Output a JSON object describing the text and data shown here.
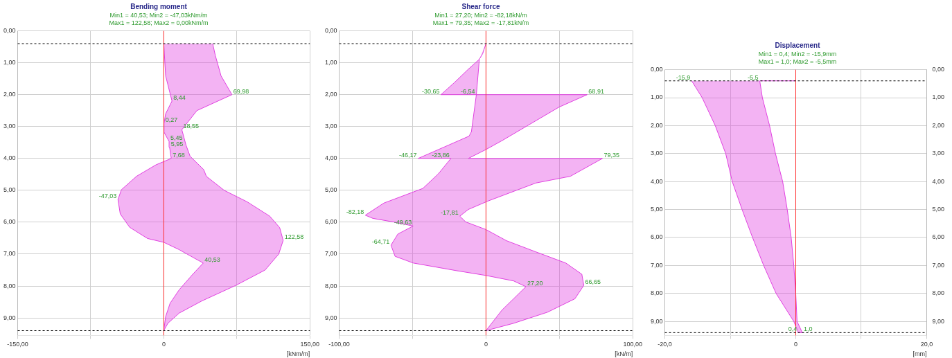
{
  "chart_data": [
    {
      "type": "area",
      "title": "Bending moment",
      "subtitle": "Min1 = 40,53; Min2 = -47,03kNm/m\nMax1 = 122,58; Max2 = 0,00kNm/m",
      "xlabel": "[kNm/m]",
      "xlim": [
        -150,
        150
      ],
      "xticks": [
        {
          "value": -150,
          "label": "-150,00"
        },
        {
          "value": -75,
          "label": null
        },
        {
          "value": 0,
          "label": "0"
        },
        {
          "value": 75,
          "label": null
        },
        {
          "value": 150,
          "label": "150,00"
        }
      ],
      "ylim": [
        9.55,
        0
      ],
      "yticks": [
        {
          "value": 0,
          "label": "0,00"
        },
        {
          "value": 1,
          "label": "1,00"
        },
        {
          "value": 2,
          "label": "2,00"
        },
        {
          "value": 3,
          "label": "3,00"
        },
        {
          "value": 4,
          "label": "4,00"
        },
        {
          "value": 5,
          "label": "5,00"
        },
        {
          "value": 6,
          "label": "6,00"
        },
        {
          "value": 7,
          "label": "7,00"
        },
        {
          "value": 8,
          "label": "8,00"
        },
        {
          "value": 9,
          "label": "9,00"
        }
      ],
      "grid": true,
      "legend": false,
      "series": [
        {
          "color": "#e040e0",
          "x": [
            50.2,
            53,
            58.8,
            69.98,
            34,
            18.55,
            22.8,
            27,
            41,
            43.7,
            62,
            85.6,
            108.8,
            119,
            122.58,
            118,
            104,
            74,
            39,
            15.8,
            4.2,
            0,
            1.9,
            6.5,
            15.8,
            29.8,
            40.53,
            29.8,
            15.8,
            0,
            -16.7,
            -35,
            -44.7,
            -47.03,
            -43.5,
            -28,
            -8,
            7.68,
            5.95,
            5.45,
            0,
            0.27,
            1.9,
            8.44,
            1.9,
            0
          ],
          "values": [
            0.4,
            0.78,
            1.41,
            2.0,
            2.5,
            3.1,
            3.58,
            3.93,
            4.35,
            4.56,
            5.0,
            5.36,
            5.81,
            6.17,
            6.57,
            7.0,
            7.5,
            7.98,
            8.47,
            8.85,
            9.17,
            9.4,
            8.96,
            8.54,
            8.12,
            7.63,
            7.28,
            7.1,
            6.86,
            6.63,
            6.51,
            6.16,
            5.74,
            5.29,
            4.98,
            4.56,
            4.2,
            4.0,
            3.65,
            3.47,
            3.16,
            2.9,
            2.6,
            2.2,
            1.41,
            0.4
          ]
        }
      ],
      "ref_lines": [
        {
          "axis": "x",
          "value": 0,
          "color": "#ff3030"
        },
        {
          "axis": "y",
          "value": 0.4,
          "color": "#000000",
          "line_style": "dashed"
        },
        {
          "axis": "y",
          "value": 9.4,
          "color": "#000000",
          "line_style": "dashed"
        }
      ],
      "annotations": [
        {
          "text": "69,98",
          "x": 69.98,
          "y": 2.0
        },
        {
          "text": "8,44",
          "x": 8.44,
          "y": 2.2
        },
        {
          "text": "0,27",
          "x": 0.27,
          "y": 2.9
        },
        {
          "text": "18,55",
          "x": 18.55,
          "y": 3.1
        },
        {
          "text": "5,45",
          "x": 5.45,
          "y": 3.47
        },
        {
          "text": "5,95",
          "x": 5.95,
          "y": 3.65
        },
        {
          "text": "7,68",
          "x": 7.68,
          "y": 4.0
        },
        {
          "text": "-47,03",
          "x": -47.03,
          "y": 5.29
        },
        {
          "text": "122,58",
          "x": 122.58,
          "y": 6.57
        },
        {
          "text": "40,53",
          "x": 40.53,
          "y": 7.28
        }
      ]
    },
    {
      "type": "area",
      "title": "Shear force",
      "subtitle": "Min1 = 27,20; Min2 = -82,18kN/m\nMax1 = 79,35; Max2 = -17,81kN/m",
      "xlabel": "[kN/m]",
      "xlim": [
        -100,
        100
      ],
      "xticks": [
        {
          "value": -100,
          "label": "-100,00"
        },
        {
          "value": -50,
          "label": null
        },
        {
          "value": 0,
          "label": "0"
        },
        {
          "value": 50,
          "label": null
        },
        {
          "value": 100,
          "label": "100,00"
        }
      ],
      "ylim": [
        9.55,
        0
      ],
      "yticks": [
        {
          "value": 0,
          "label": "0,00"
        },
        {
          "value": 1,
          "label": "1,00"
        },
        {
          "value": 2,
          "label": "2,00"
        },
        {
          "value": 3,
          "label": "3,00"
        },
        {
          "value": 4,
          "label": "4,00"
        },
        {
          "value": 5,
          "label": "5,00"
        },
        {
          "value": 6,
          "label": "6,00"
        },
        {
          "value": 7,
          "label": "7,00"
        },
        {
          "value": 8,
          "label": "8,00"
        },
        {
          "value": 9,
          "label": "9,00"
        }
      ],
      "grid": true,
      "legend": false,
      "series": [
        {
          "color": "#e040e0",
          "x": [
            0,
            -2.2,
            -4.5,
            -6.54,
            68.91,
            49.8,
            26.5,
            11,
            0,
            -12,
            79.35,
            57.5,
            34,
            1.7,
            -12,
            -17.81,
            -13.8,
            0,
            14,
            34,
            54.4,
            65.3,
            66.65,
            60.6,
            42,
            18.8,
            0,
            11,
            18.8,
            27.2,
            18.8,
            0,
            -20,
            -49.5,
            -61.9,
            -64.71,
            -60,
            -49.63,
            -62,
            -77,
            -82.18,
            -69.6,
            -43,
            -32.4,
            -23.86,
            -46.17,
            -11.5,
            -9.9,
            -6.54,
            -30.65,
            -21.5,
            -12,
            -4.5
          ],
          "values": [
            0.4,
            0.71,
            0.89,
            2.0,
            2.0,
            2.39,
            3.02,
            3.44,
            3.72,
            4.0,
            4.0,
            4.56,
            4.77,
            5.33,
            5.6,
            5.81,
            5.99,
            6.23,
            6.58,
            6.93,
            7.28,
            7.63,
            7.98,
            8.4,
            8.82,
            9.17,
            9.4,
            8.75,
            8.4,
            8.02,
            7.84,
            7.67,
            7.52,
            7.28,
            7.07,
            6.72,
            6.37,
            6.12,
            6.0,
            5.88,
            5.78,
            5.4,
            4.94,
            4.48,
            4.0,
            4.0,
            3.3,
            3.16,
            2.0,
            2.0,
            1.62,
            1.2,
            0.89
          ]
        }
      ],
      "ref_lines": [
        {
          "axis": "x",
          "value": 0,
          "color": "#ff3030"
        },
        {
          "axis": "y",
          "value": 0.4,
          "color": "#000000",
          "line_style": "dashed"
        },
        {
          "axis": "y",
          "value": 9.4,
          "color": "#000000",
          "line_style": "dashed"
        }
      ],
      "annotations": [
        {
          "text": "-30,65",
          "x": -30.65,
          "y": 2.0
        },
        {
          "text": "-6,54",
          "x": -6.54,
          "y": 2.0
        },
        {
          "text": "68,91",
          "x": 68.91,
          "y": 2.0
        },
        {
          "text": "-46,17",
          "x": -46.17,
          "y": 4.0
        },
        {
          "text": "-23,86",
          "x": -23.86,
          "y": 4.0
        },
        {
          "text": "79,35",
          "x": 79.35,
          "y": 4.0
        },
        {
          "text": "-82,18",
          "x": -82.18,
          "y": 5.78
        },
        {
          "text": "-17,81",
          "x": -17.81,
          "y": 5.81
        },
        {
          "text": "-49,63",
          "x": -49.63,
          "y": 6.12
        },
        {
          "text": "-64,71",
          "x": -64.71,
          "y": 6.72
        },
        {
          "text": "27,20",
          "x": 27.2,
          "y": 8.02
        },
        {
          "text": "66,65",
          "x": 66.65,
          "y": 7.98
        }
      ]
    },
    {
      "type": "area",
      "title": "Displacement",
      "subtitle": "Min1 = 0,4; Min2 = -15,9mm\nMax1 = 1,0; Max2 = -5,5mm",
      "xlabel": "[mm]",
      "xlim": [
        -20,
        20
      ],
      "xticks": [
        {
          "value": -20,
          "label": "-20,0"
        },
        {
          "value": -10,
          "label": null
        },
        {
          "value": 0,
          "label": "0"
        },
        {
          "value": 10,
          "label": null
        },
        {
          "value": 20,
          "label": "20,0"
        }
      ],
      "ylim": [
        9.5,
        0
      ],
      "yticks": [
        {
          "value": 0,
          "label": "0,00"
        },
        {
          "value": 1,
          "label": "1,00"
        },
        {
          "value": 2,
          "label": "2,00"
        },
        {
          "value": 3,
          "label": "3,00"
        },
        {
          "value": 4,
          "label": "4,00"
        },
        {
          "value": 5,
          "label": "5,00"
        },
        {
          "value": 6,
          "label": "6,00"
        },
        {
          "value": 7,
          "label": "7,00"
        },
        {
          "value": 8,
          "label": "8,00"
        },
        {
          "value": 9,
          "label": "9,00"
        }
      ],
      "y2lim": [
        9.5,
        0
      ],
      "y2ticks": [
        {
          "value": 0,
          "label": "0,00"
        },
        {
          "value": 1,
          "label": "1,00"
        },
        {
          "value": 2,
          "label": "2,00"
        },
        {
          "value": 3,
          "label": "3,00"
        },
        {
          "value": 4,
          "label": "4,00"
        },
        {
          "value": 5,
          "label": "5,00"
        },
        {
          "value": 6,
          "label": "6,00"
        },
        {
          "value": 7,
          "label": "7,00"
        },
        {
          "value": 8,
          "label": "8,00"
        },
        {
          "value": 9,
          "label": "9,00"
        }
      ],
      "grid": true,
      "legend": false,
      "series": [
        {
          "color": "#e040e0",
          "x": [
            0,
            -5.5,
            -5.1,
            -4.0,
            -3.1,
            -2.0,
            -1.3,
            -0.7,
            -0.3,
            0,
            0.2,
            1.0,
            0.4,
            -0.3,
            -3.0,
            -4.9,
            -6.6,
            -8.2,
            -9.7,
            -10.7,
            -12.3,
            -14.3,
            -15.9
          ],
          "values": [
            0.4,
            0.4,
            1,
            2,
            3,
            4,
            5,
            6,
            7,
            8,
            9,
            9.4,
            9.4,
            9,
            8,
            7,
            6,
            5,
            4,
            3,
            2,
            1,
            0.4
          ]
        }
      ],
      "ref_lines": [
        {
          "axis": "x",
          "value": 0,
          "color": "#ff3030"
        },
        {
          "axis": "y",
          "value": 0.4,
          "color": "#000000",
          "line_style": "dashed"
        },
        {
          "axis": "y",
          "value": 9.4,
          "color": "#000000",
          "line_style": "dashed"
        }
      ],
      "annotations": [
        {
          "text": "-15,9",
          "x": -15.9,
          "y": 0.4
        },
        {
          "text": "-5,5",
          "x": -5.5,
          "y": 0.4
        },
        {
          "text": "0,4",
          "x": 0.4,
          "y": 9.4
        },
        {
          "text": "1,0",
          "x": 1.0,
          "y": 9.4
        }
      ]
    }
  ]
}
